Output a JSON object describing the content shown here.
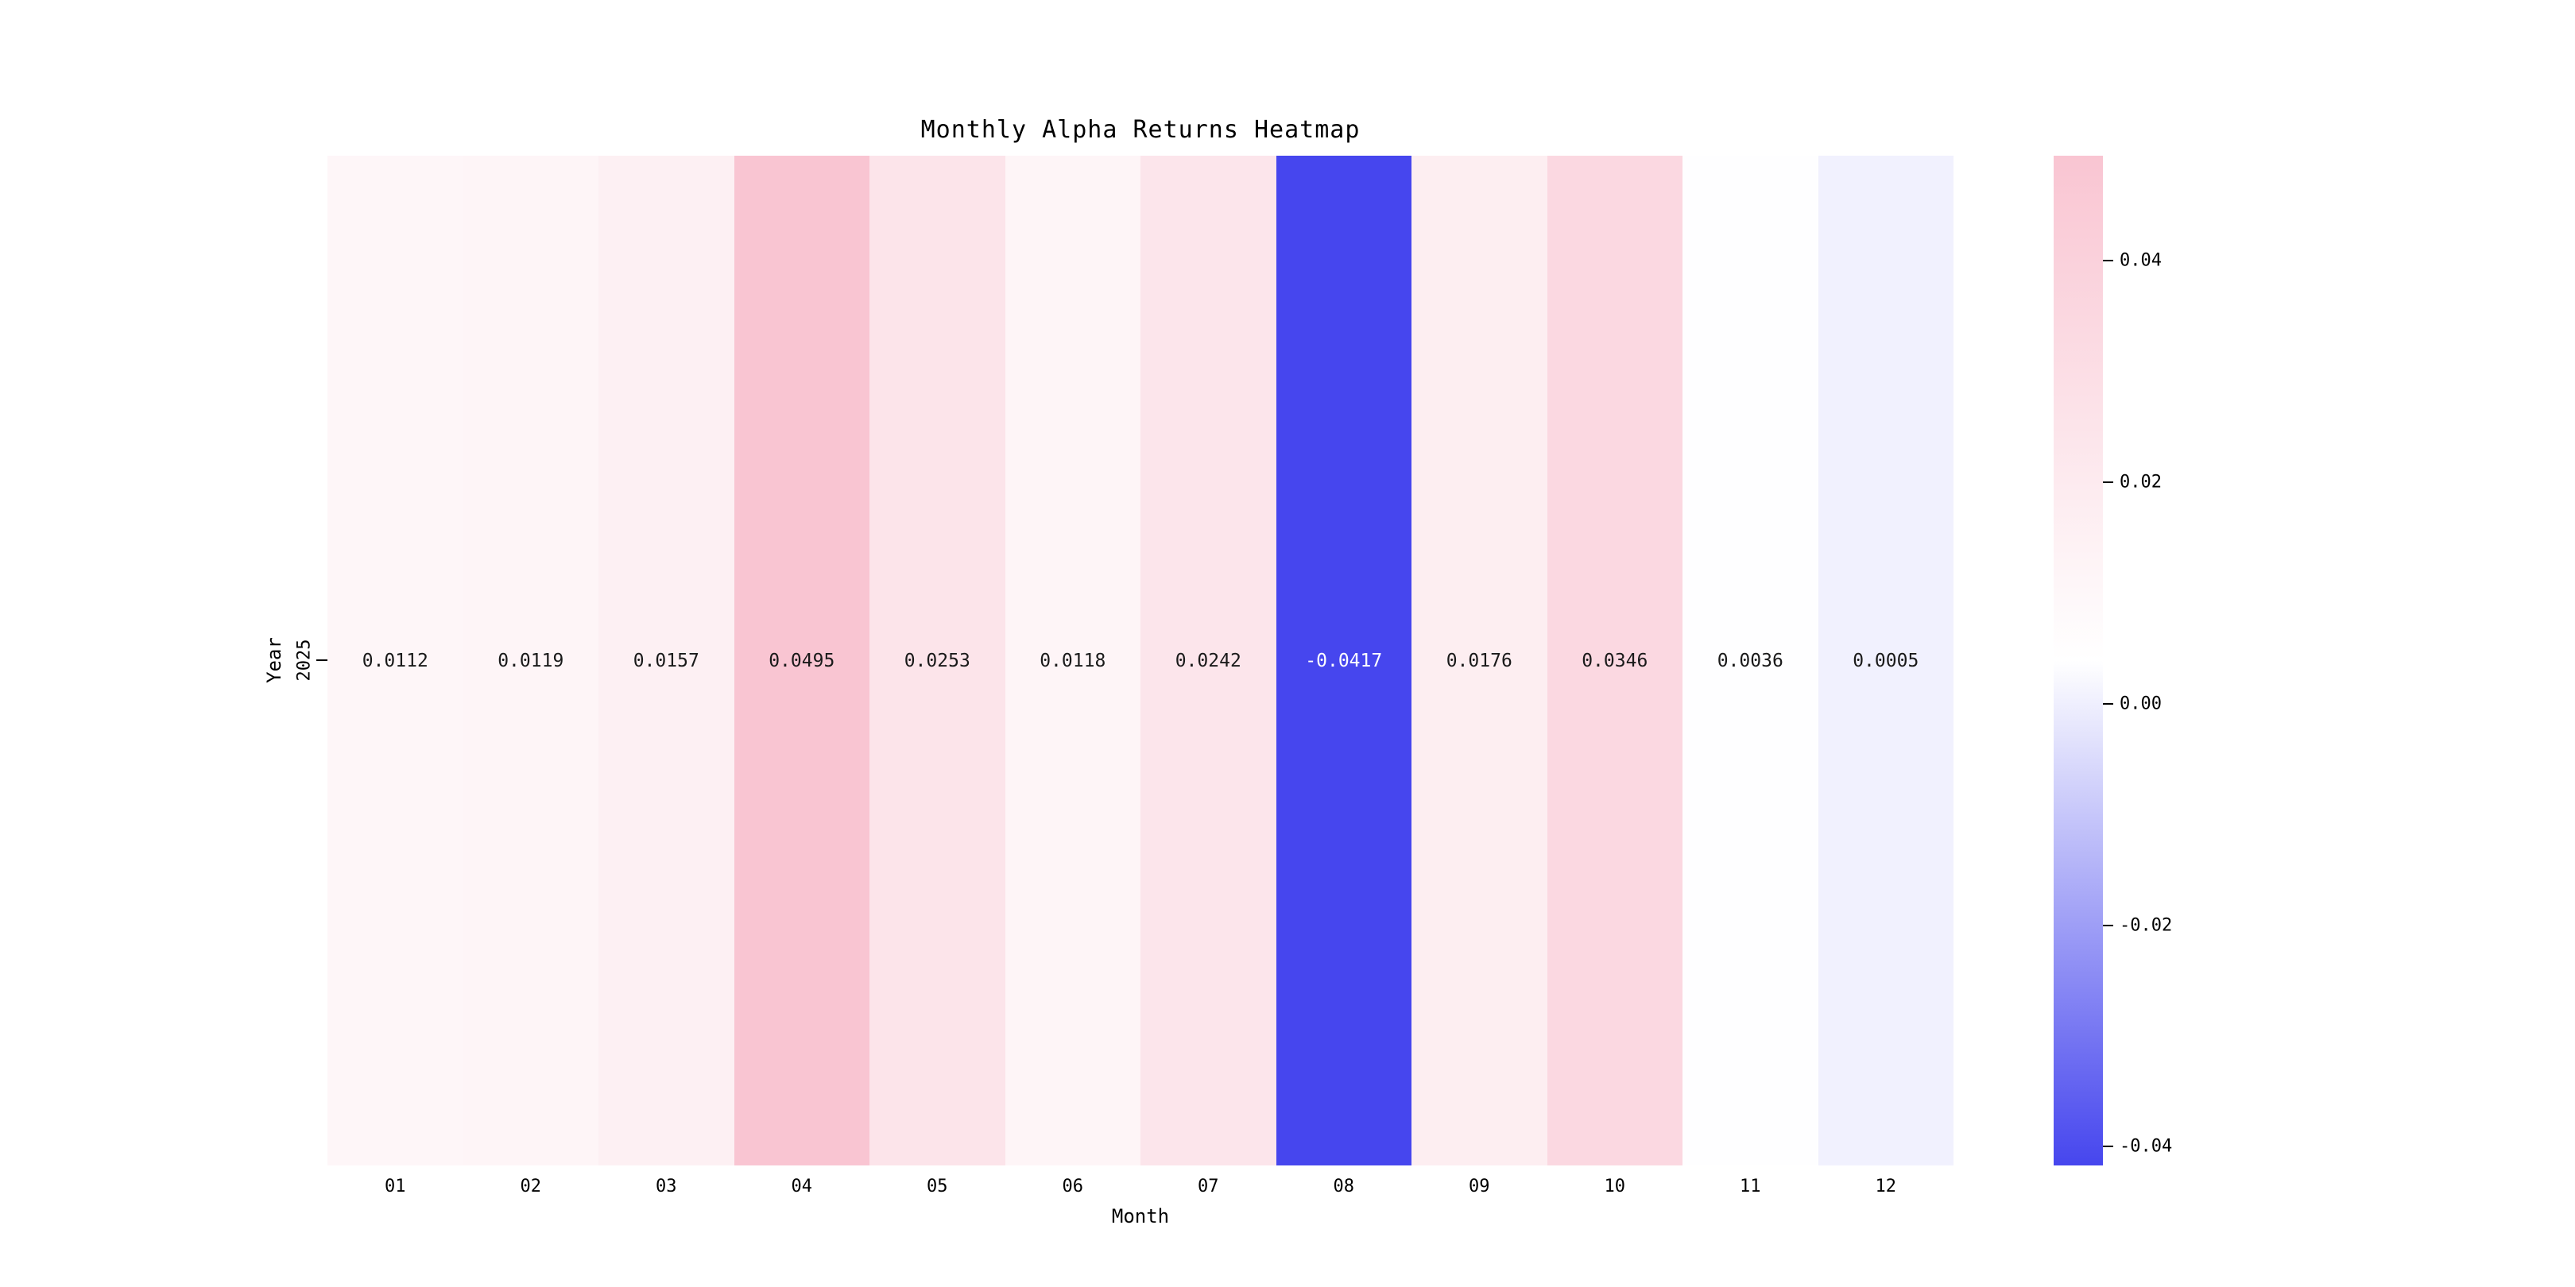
{
  "chart_data": {
    "type": "heatmap",
    "title": "Monthly Alpha Returns Heatmap",
    "xlabel": "Month",
    "ylabel": "Year",
    "rows": [
      "2025"
    ],
    "columns": [
      "01",
      "02",
      "03",
      "04",
      "05",
      "06",
      "07",
      "08",
      "09",
      "10",
      "11",
      "12"
    ],
    "values": [
      [
        0.0112,
        0.0119,
        0.0157,
        0.0495,
        0.0253,
        0.0118,
        0.0242,
        -0.0417,
        0.0176,
        0.0346,
        0.0036,
        0.0005
      ]
    ],
    "value_format_decimals": 4,
    "colormap": {
      "negative_end": "#4646ee",
      "midpoint": "#ffffff",
      "positive_end": "#f9c5d2"
    },
    "scale": {
      "vmin": -0.0417,
      "vmax": 0.0495
    },
    "colorbar_ticks": [
      {
        "label": "0.04",
        "value": 0.04
      },
      {
        "label": "0.02",
        "value": 0.02
      },
      {
        "label": "0.00",
        "value": 0.0
      },
      {
        "label": "-0.02",
        "value": -0.02
      },
      {
        "label": "-0.04",
        "value": -0.04
      }
    ],
    "text_colors": {
      "dark": "#1a1a1a",
      "light": "#ffffff"
    }
  }
}
